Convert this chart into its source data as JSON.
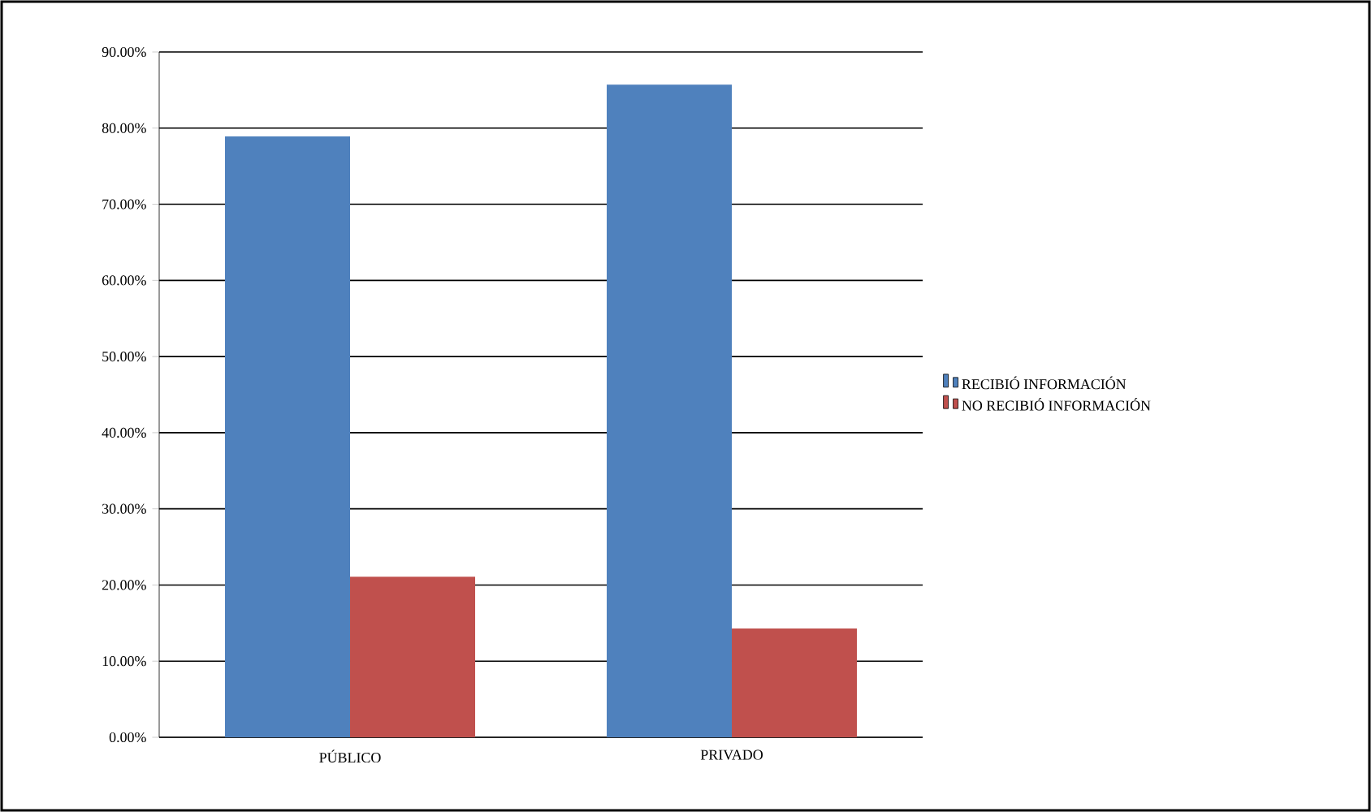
{
  "chart_data": {
    "type": "bar",
    "categories": [
      "PÚBLICO",
      "PRIVADO"
    ],
    "series": [
      {
        "name": "RECIBIÓ INFORMACIÓN",
        "color": "#4f81bd",
        "values": [
          78.9,
          85.7
        ]
      },
      {
        "name": "NO RECIBIÓ INFORMACIÓN",
        "color": "#c0504d",
        "values": [
          21.1,
          14.3
        ]
      }
    ],
    "ylim": [
      0,
      90
    ],
    "yticks": [
      {
        "value": 0,
        "label": "0.00%"
      },
      {
        "value": 10,
        "label": "10.00%"
      },
      {
        "value": 20,
        "label": "20.00%"
      },
      {
        "value": 30,
        "label": "30.00%"
      },
      {
        "value": 40,
        "label": "40.00%"
      },
      {
        "value": 50,
        "label": "50.00%"
      },
      {
        "value": 60,
        "label": "60.00%"
      },
      {
        "value": 70,
        "label": "70.00%"
      },
      {
        "value": 80,
        "label": "80.00%"
      },
      {
        "value": 90,
        "label": "90.00%"
      }
    ],
    "grid": "y",
    "legend": "right"
  }
}
